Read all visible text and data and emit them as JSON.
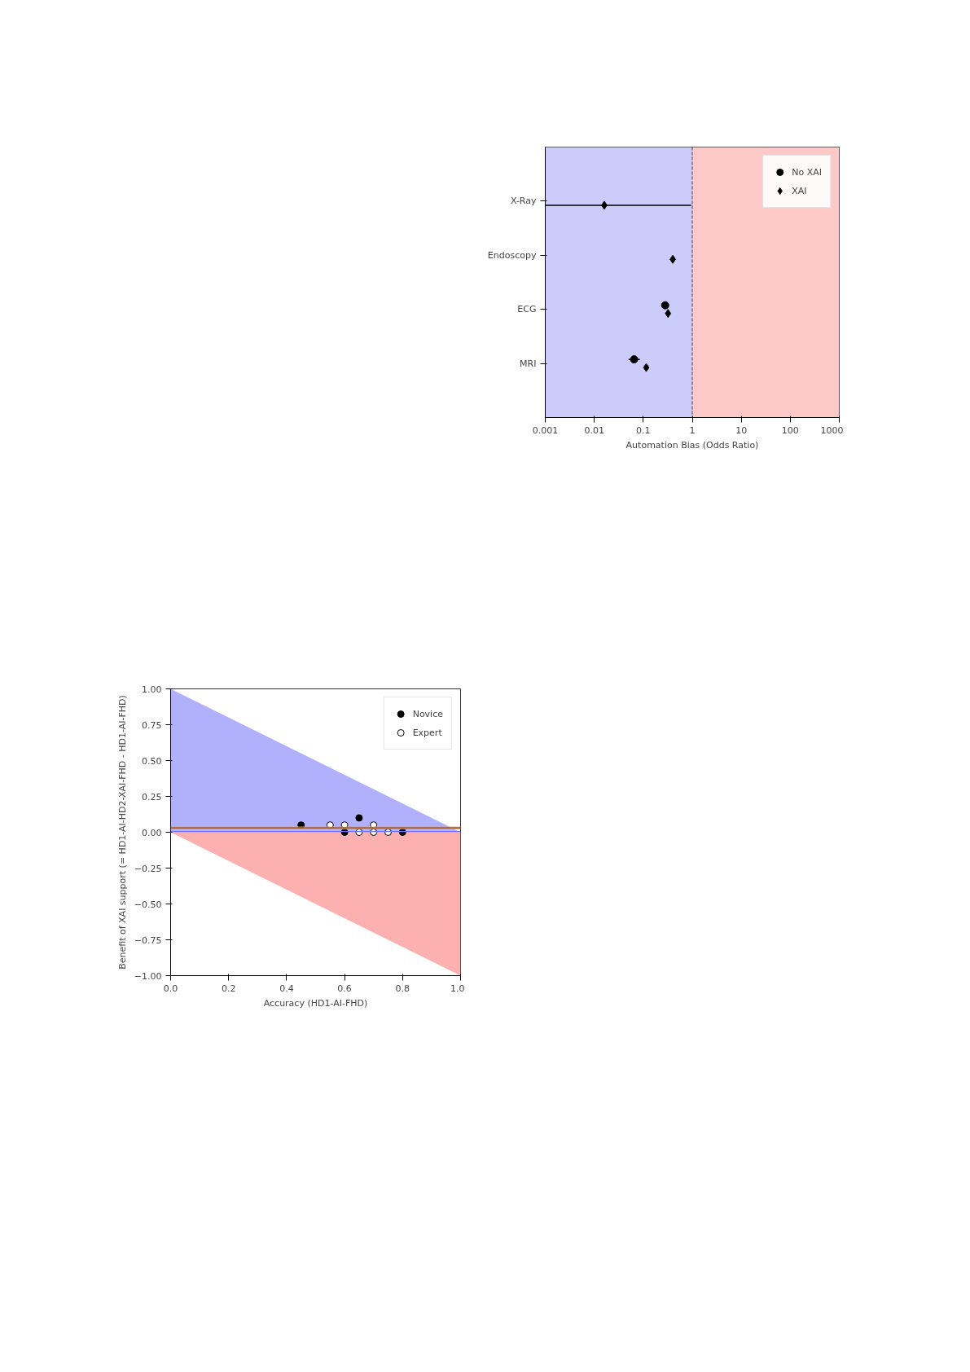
{
  "chart_data": [
    {
      "type": "scatter",
      "orientation": "horizontal",
      "categories": [
        "X-Ray",
        "Endoscopy",
        "ECG",
        "MRI"
      ],
      "xlabel": "Automation Bias (Odds Ratio)",
      "log": "x",
      "xlim": [
        0.001,
        1000
      ],
      "xticks": [
        0.001,
        0.01,
        0.1,
        1,
        10,
        100,
        1000
      ],
      "grid": false,
      "legend": "top right",
      "series": [
        {
          "name": "No XAI",
          "color": "#000000",
          "marker": "circle",
          "values": [
            null,
            null,
            0.28,
            0.065
          ],
          "errors": [
            null,
            null,
            [
              0.24,
              0.31
            ],
            [
              0.05,
              0.085
            ]
          ]
        },
        {
          "name": "XAI",
          "color": "#000000",
          "marker": "diamond",
          "values": [
            0.016,
            0.4,
            0.32,
            0.115
          ],
          "errors": [
            [
              0.001,
              0.95
            ],
            null,
            null,
            null
          ]
        }
      ],
      "bands": [
        {
          "axis": "x",
          "from": 0.001,
          "to": 1,
          "color": "#ccccfa"
        },
        {
          "axis": "x",
          "from": 1,
          "to": 1000,
          "color": "#fcc8c8"
        }
      ],
      "ref_lines": [
        {
          "axis": "x",
          "value": 1,
          "color": "#555577",
          "line_style": "dashed"
        }
      ]
    },
    {
      "type": "scatter",
      "xlabel": "Accuracy (HD1-AI-FHD)",
      "ylabel": "Benefit of XAI support (= HD1-AI-HD2-XAI-FHD - HD1-AI-FHD)",
      "xlim": [
        0,
        1
      ],
      "ylim": [
        -1,
        1
      ],
      "xticks": [
        {
          "value": 0,
          "label": "0.0"
        },
        {
          "value": 0.2,
          "label": "0.2"
        },
        {
          "value": 0.4,
          "label": "0.4"
        },
        {
          "value": 0.6,
          "label": "0.6"
        },
        {
          "value": 0.8,
          "label": "0.8"
        },
        {
          "value": 1,
          "label": "1.0"
        }
      ],
      "yticks": [
        {
          "value": 1,
          "label": "1.00"
        },
        {
          "value": 0.75,
          "label": "0.75"
        },
        {
          "value": 0.5,
          "label": "0.50"
        },
        {
          "value": 0.25,
          "label": "0.25"
        },
        {
          "value": 0,
          "label": "0.00"
        },
        {
          "value": -0.25,
          "label": "−0.25"
        },
        {
          "value": -0.5,
          "label": "−0.50"
        },
        {
          "value": -0.75,
          "label": "−0.75"
        },
        {
          "value": -1,
          "label": "−1.00"
        }
      ],
      "grid": false,
      "legend": "top right",
      "series": [
        {
          "type": "area",
          "color": "#b0b0fc",
          "x": [
            0,
            1
          ],
          "values": [
            1,
            0
          ]
        },
        {
          "type": "area",
          "color": "#fcb0b0",
          "x": [
            0,
            1
          ],
          "values": [
            0,
            -1
          ]
        },
        {
          "name": "Novice",
          "color": "#000000",
          "marker": "circle",
          "x": [
            0.45,
            0.65,
            0.6,
            0.8
          ],
          "values": [
            0.05,
            0.1,
            0,
            0
          ]
        },
        {
          "name": "Expert",
          "color": "#ffffff",
          "marker": "circle",
          "x": [
            0.55,
            0.6,
            0.7,
            0.65,
            0.7,
            0.75
          ],
          "values": [
            0.05,
            0.05,
            0.05,
            0,
            0,
            0
          ]
        }
      ],
      "bands": [
        {
          "axis": "y",
          "from": 0.02,
          "to": 0.04,
          "color": "#e0a070"
        }
      ],
      "ref_lines": [
        {
          "axis": "y",
          "value": 0.03,
          "color": "#8b4513",
          "line_style": "solid"
        },
        {
          "axis": "y",
          "value": 0.005,
          "color": "#7070ff",
          "line_style": "solid"
        }
      ]
    }
  ]
}
